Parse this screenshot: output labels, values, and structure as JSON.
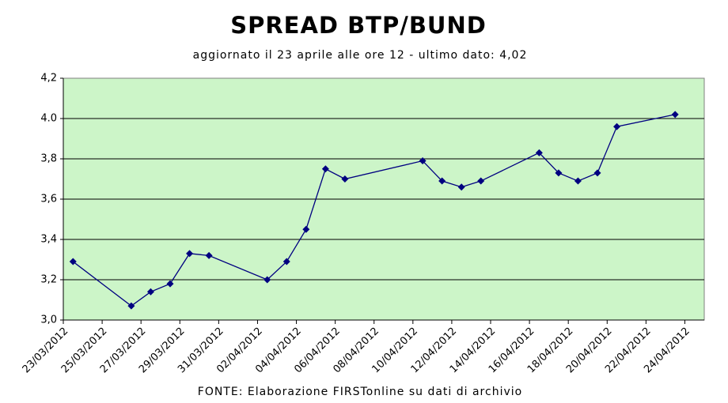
{
  "chart_data": {
    "type": "line",
    "title": "SPREAD BTP/BUND",
    "subtitle": "aggiornato il 23 aprile alle ore 12 - ultimo dato: 4,02",
    "source": "FONTE: Elaborazione FIRSTonline su dati di archivio",
    "x": [
      "23/03/2012",
      "26/03/2012",
      "27/03/2012",
      "28/03/2012",
      "29/03/2012",
      "30/03/2012",
      "02/04/2012",
      "03/04/2012",
      "04/04/2012",
      "05/04/2012",
      "06/04/2012",
      "10/04/2012",
      "11/04/2012",
      "12/04/2012",
      "13/04/2012",
      "16/04/2012",
      "17/04/2012",
      "18/04/2012",
      "19/04/2012",
      "20/04/2012",
      "23/04/2012"
    ],
    "series": [
      {
        "color": "#000080",
        "values": [
          3.29,
          3.07,
          3.14,
          3.18,
          3.33,
          3.32,
          3.2,
          3.29,
          3.45,
          3.75,
          3.7,
          3.79,
          3.69,
          3.66,
          3.69,
          3.83,
          3.73,
          3.69,
          3.73,
          3.96,
          4.02
        ]
      }
    ],
    "xlim": [
      "23/03/2012",
      "25/04/2012"
    ],
    "xticks": [
      "23/03/2012",
      "25/03/2012",
      "27/03/2012",
      "29/03/2012",
      "31/03/2012",
      "02/04/2012",
      "04/04/2012",
      "06/04/2012",
      "08/04/2012",
      "10/04/2012",
      "12/04/2012",
      "14/04/2012",
      "16/04/2012",
      "18/04/2012",
      "20/04/2012",
      "22/04/2012",
      "24/04/2012"
    ],
    "ylim": [
      3.0,
      4.2
    ],
    "yticks": [
      {
        "value": 3.0,
        "label": "3,0"
      },
      {
        "value": 3.2,
        "label": "3,2"
      },
      {
        "value": 3.4,
        "label": "3,4"
      },
      {
        "value": 3.6,
        "label": "3,6"
      },
      {
        "value": 3.8,
        "label": "3,8"
      },
      {
        "value": 4.0,
        "label": "4.0"
      },
      {
        "value": 4.2,
        "label": "4,2"
      }
    ],
    "grid": true,
    "background": "#ccf5c8"
  }
}
